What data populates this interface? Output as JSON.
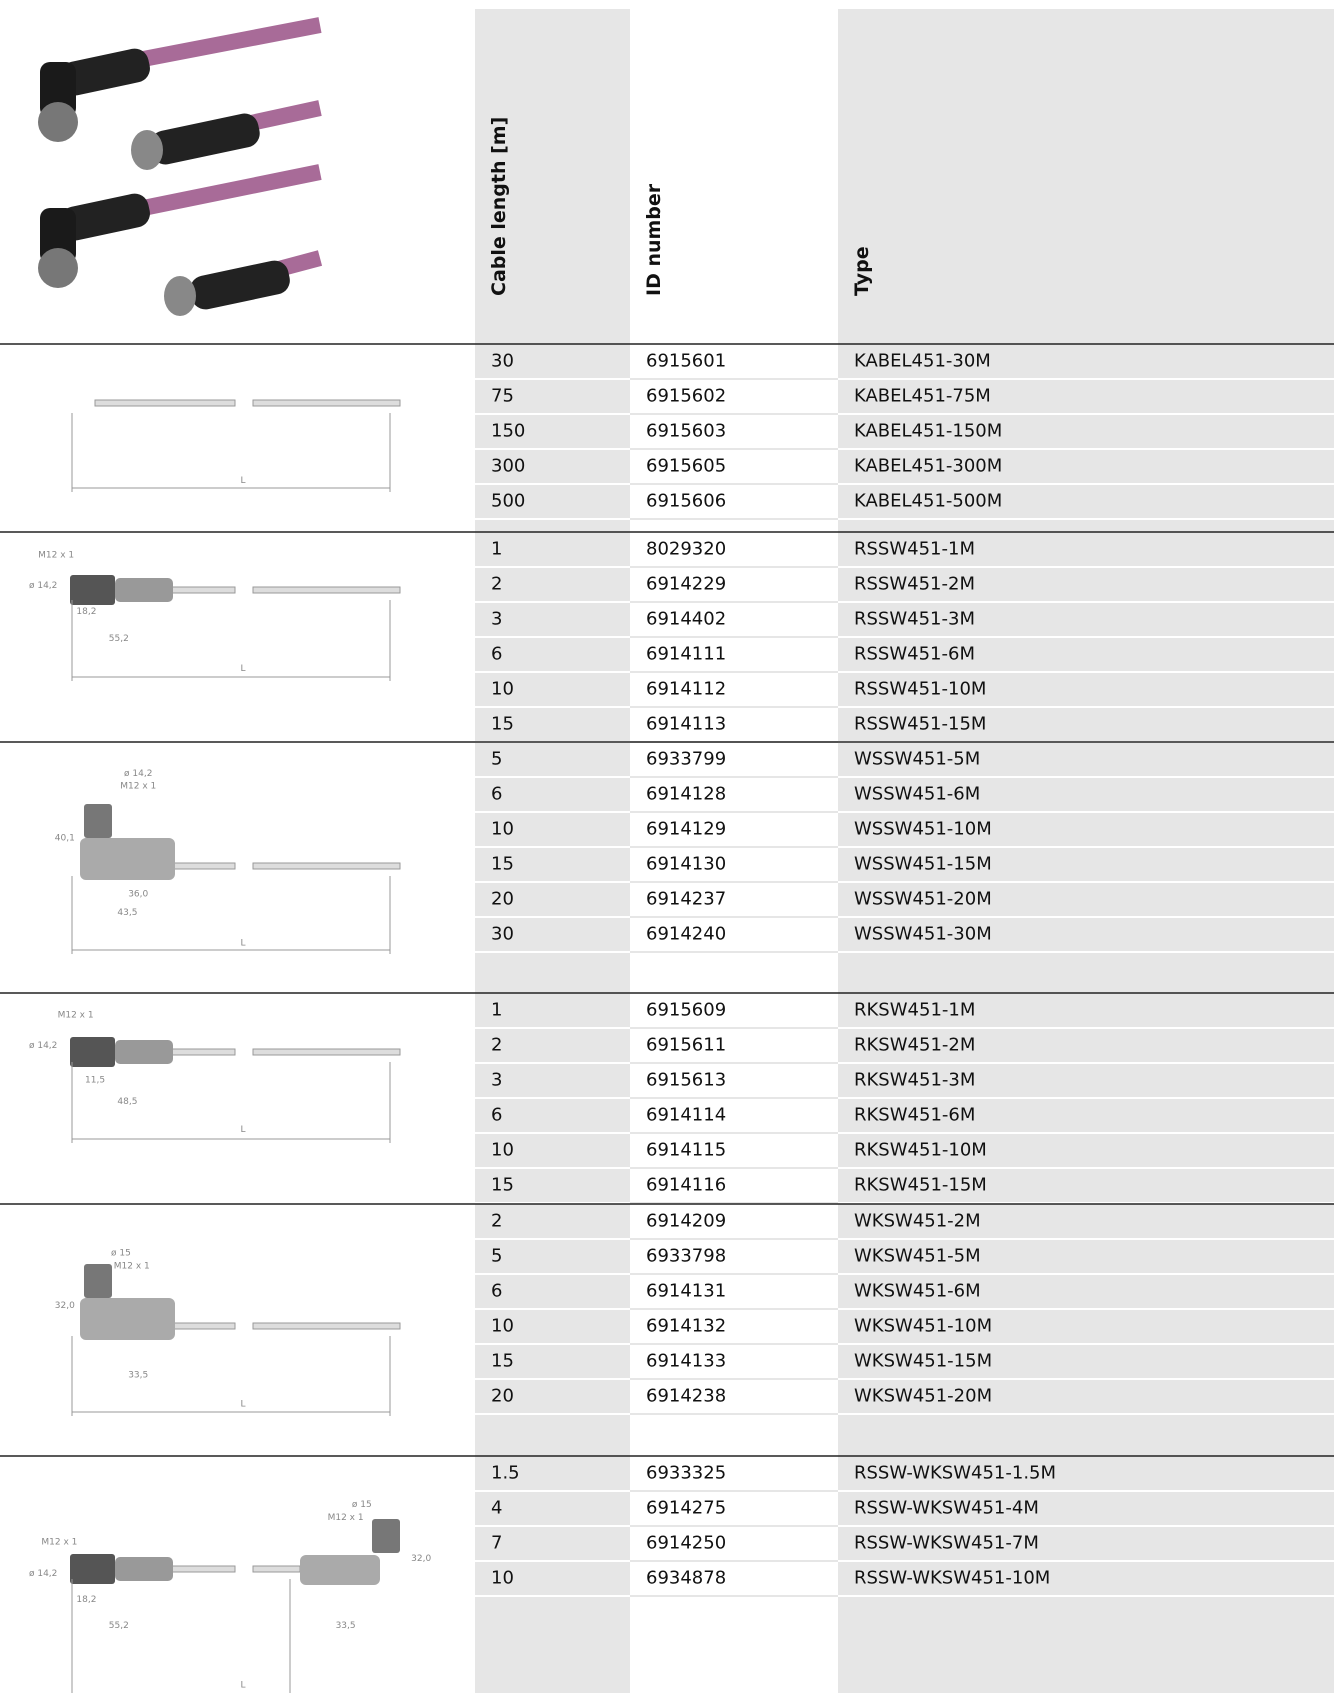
{
  "header": {
    "columns": [
      "Cable length [m]",
      "ID number",
      "Type"
    ]
  },
  "groups": [
    {
      "drawing_labels": [
        "L"
      ],
      "rows": [
        [
          "30",
          "6915601",
          "KABEL451-30M"
        ],
        [
          "75",
          "6915602",
          "KABEL451-75M"
        ],
        [
          "150",
          "6915603",
          "KABEL451-150M"
        ],
        [
          "300",
          "6915605",
          "KABEL451-300M"
        ],
        [
          "500",
          "6915606",
          "KABEL451-500M"
        ]
      ]
    },
    {
      "drawing_labels": [
        "M12 x 1",
        "ø 14,2",
        "18,2",
        "55,2",
        "L"
      ],
      "rows": [
        [
          "1",
          "8029320",
          "RSSW451-1M"
        ],
        [
          "2",
          "6914229",
          "RSSW451-2M"
        ],
        [
          "3",
          "6914402",
          "RSSW451-3M"
        ],
        [
          "6",
          "6914111",
          "RSSW451-6M"
        ],
        [
          "10",
          "6914112",
          "RSSW451-10M"
        ],
        [
          "15",
          "6914113",
          "RSSW451-15M"
        ]
      ]
    },
    {
      "drawing_labels": [
        "ø 14,2",
        "M12 x 1",
        "40,1",
        "36,0",
        "43,5",
        "L"
      ],
      "rows": [
        [
          "5",
          "6933799",
          "WSSW451-5M"
        ],
        [
          "6",
          "6914128",
          "WSSW451-6M"
        ],
        [
          "10",
          "6914129",
          "WSSW451-10M"
        ],
        [
          "15",
          "6914130",
          "WSSW451-15M"
        ],
        [
          "20",
          "6914237",
          "WSSW451-20M"
        ],
        [
          "30",
          "6914240",
          "WSSW451-30M"
        ]
      ]
    },
    {
      "drawing_labels": [
        "M12 x 1",
        "ø 14,2",
        "11,5",
        "48,5",
        "L"
      ],
      "rows": [
        [
          "1",
          "6915609",
          "RKSW451-1M"
        ],
        [
          "2",
          "6915611",
          "RKSW451-2M"
        ],
        [
          "3",
          "6915613",
          "RKSW451-3M"
        ],
        [
          "6",
          "6914114",
          "RKSW451-6M"
        ],
        [
          "10",
          "6914115",
          "RKSW451-10M"
        ],
        [
          "15",
          "6914116",
          "RKSW451-15M"
        ]
      ]
    },
    {
      "drawing_labels": [
        "ø 15",
        "M12 x 1",
        "32,0",
        "33,5",
        "L"
      ],
      "rows": [
        [
          "2",
          "6914209",
          "WKSW451-2M"
        ],
        [
          "5",
          "6933798",
          "WKSW451-5M"
        ],
        [
          "6",
          "6914131",
          "WKSW451-6M"
        ],
        [
          "10",
          "6914132",
          "WKSW451-10M"
        ],
        [
          "15",
          "6914133",
          "WKSW451-15M"
        ],
        [
          "20",
          "6914238",
          "WKSW451-20M"
        ]
      ]
    },
    {
      "drawing_labels": [
        "M12 x 1",
        "ø 14,2",
        "18,2",
        "55,2",
        "ø 15",
        "M12 x 1",
        "32,0",
        "33,5",
        "L"
      ],
      "rows": [
        [
          "1.5",
          "6933325",
          "RSSW-WKSW451-1.5M"
        ],
        [
          "4",
          "6914275",
          "RSSW-WKSW451-4M"
        ],
        [
          "7",
          "6914250",
          "RSSW-WKSW451-7M"
        ],
        [
          "10",
          "6934878",
          "RSSW-WKSW451-10M"
        ]
      ]
    }
  ]
}
